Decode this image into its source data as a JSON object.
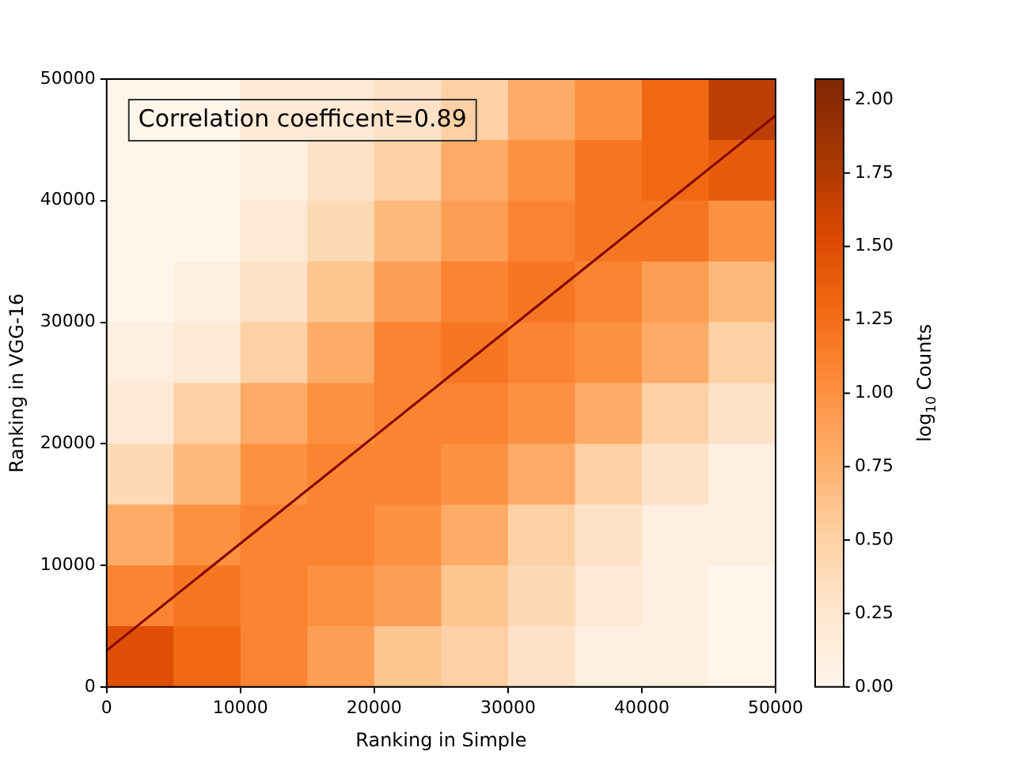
{
  "chart_data": {
    "type": "heatmap",
    "xlabel": "Ranking in Simple",
    "ylabel": "Ranking in VGG-16",
    "clabel": "log$_{10}$ Counts",
    "annotations": [
      "Correlation coefficent=0.89"
    ],
    "xlim": [
      0,
      50000
    ],
    "xticks": [
      0,
      10000,
      20000,
      30000,
      40000,
      50000
    ],
    "ylim": [
      0,
      50000
    ],
    "yticks": [
      0,
      10000,
      20000,
      30000,
      40000,
      50000
    ],
    "clim": [
      0,
      2.07
    ],
    "cticks": [
      {
        "value": 0,
        "label": "0.00"
      },
      0.25,
      {
        "value": 0.5,
        "label": "0.50"
      },
      0.75,
      {
        "value": 1,
        "label": "1.00"
      },
      1.25,
      {
        "value": 1.5,
        "label": "1.50"
      },
      1.75,
      {
        "value": 2,
        "label": "2.00"
      }
    ],
    "cells": [
      [
        0,
        0,
        0.2,
        0.2,
        0.3,
        0.5,
        0.8,
        1.0,
        1.3,
        1.7
      ],
      [
        0,
        0,
        0.1,
        0.3,
        0.5,
        0.8,
        1.0,
        1.2,
        1.3,
        1.4
      ],
      [
        0,
        0,
        0.2,
        0.4,
        0.7,
        0.9,
        1.1,
        1.2,
        1.2,
        1.0
      ],
      [
        0,
        0.1,
        0.3,
        0.6,
        0.9,
        1.1,
        1.2,
        1.1,
        0.9,
        0.7
      ],
      [
        0.1,
        0.2,
        0.5,
        0.8,
        1.1,
        1.2,
        1.1,
        1.0,
        0.8,
        0.5
      ],
      [
        0.2,
        0.5,
        0.8,
        1.0,
        1.1,
        1.1,
        1.0,
        0.8,
        0.5,
        0.3
      ],
      [
        0.4,
        0.7,
        1.0,
        1.1,
        1.1,
        1.0,
        0.8,
        0.5,
        0.3,
        0.1
      ],
      [
        0.8,
        1.0,
        1.1,
        1.1,
        1.0,
        0.8,
        0.5,
        0.3,
        0.1,
        0.1
      ],
      [
        1.1,
        1.2,
        1.1,
        1.0,
        0.9,
        0.6,
        0.4,
        0.2,
        0.1,
        0
      ],
      [
        1.5,
        1.3,
        1.1,
        0.9,
        0.6,
        0.5,
        0.3,
        0.1,
        0.1,
        0
      ]
    ],
    "series": [
      {
        "type": "line",
        "color": "#7f0000",
        "x": [
          0,
          50000
        ],
        "values": [
          3000,
          47000
        ]
      }
    ]
  }
}
